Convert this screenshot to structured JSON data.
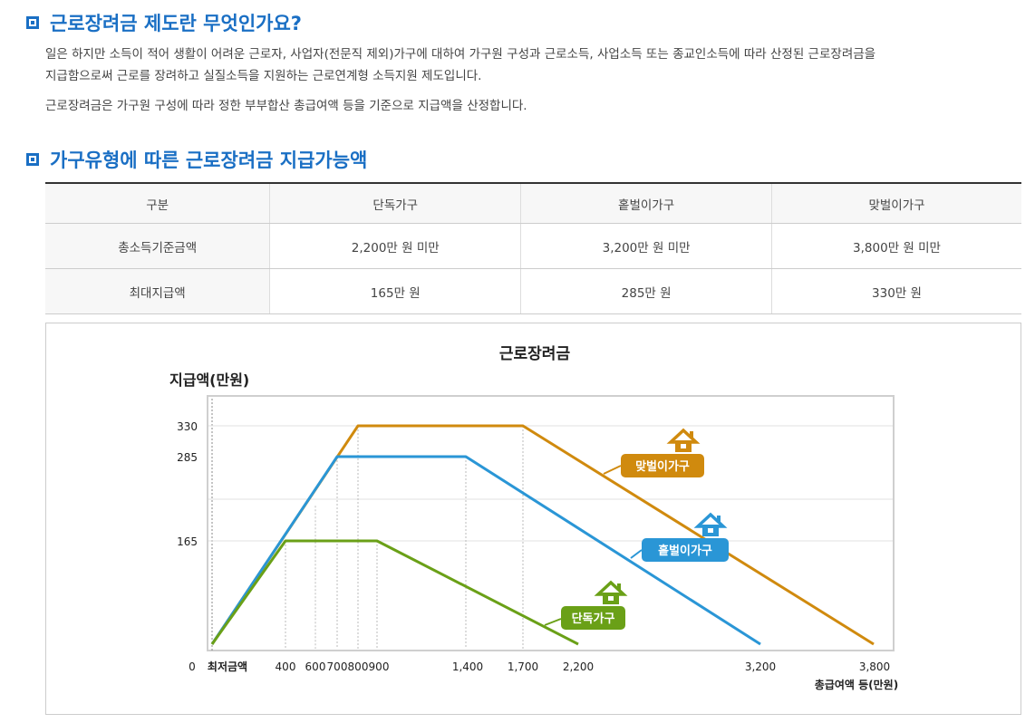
{
  "section1": {
    "title": "근로장려금 제도란 무엇인가요?",
    "para1_line1": "일은 하지만 소득이 적어 생활이 어려운 근로자, 사업자(전문직 제외)가구에 대하여 가구원 구성과 근로소득, 사업소득 또는 종교인소득에 따라 산정된 근로장려금을",
    "para1_line2": "지급함으로써 근로를 장려하고 실질소득을 지원하는 근로연계형 소득지원 제도입니다.",
    "para2": "근로장려금은 가구원 구성에 따라 정한 부부합산 총급여액 등을 기준으로 지급액을 산정합니다."
  },
  "section2": {
    "title": "가구유형에 따른 근로장려금 지급가능액"
  },
  "table": {
    "headers": [
      "구분",
      "단독가구",
      "홑벌이가구",
      "맞벌이가구"
    ],
    "rows": [
      [
        "총소득기준금액",
        "2,200만 원 미만",
        "3,200만 원 미만",
        "3,800만 원 미만"
      ],
      [
        "최대지급액",
        "165만 원",
        "285만 원",
        "330만 원"
      ]
    ]
  },
  "colors": {
    "accent": "#1a6fc4",
    "single": "#6aa017",
    "single_earner": "#2a96d6",
    "dual_earner": "#d08a0e"
  },
  "chart_data": {
    "type": "line",
    "title": "근로장려금",
    "ylabel": "지급액(만원)",
    "xlabel": "총급여액 등(만원)",
    "x_tick_labels": [
      "0",
      "최저금액",
      "400",
      "600",
      "700",
      "800",
      "900",
      "1,400",
      "1,700",
      "2,200",
      "3,200",
      "3,800"
    ],
    "y_tick_labels": [
      "330",
      "285",
      "165"
    ],
    "xlim": [
      0,
      3800
    ],
    "ylim": [
      0,
      350
    ],
    "grid": true,
    "series": [
      {
        "name": "단독가구",
        "icon": "house-icon",
        "x": [
          0,
          400,
          900,
          2200
        ],
        "y": [
          0,
          165,
          165,
          0
        ]
      },
      {
        "name": "홑벌이가구",
        "icon": "house-icon",
        "x": [
          0,
          700,
          1400,
          3200
        ],
        "y": [
          0,
          285,
          285,
          0
        ]
      },
      {
        "name": "맞벌이가구",
        "icon": "house-icon",
        "x": [
          0,
          800,
          1700,
          3800
        ],
        "y": [
          0,
          330,
          330,
          0
        ]
      }
    ]
  }
}
